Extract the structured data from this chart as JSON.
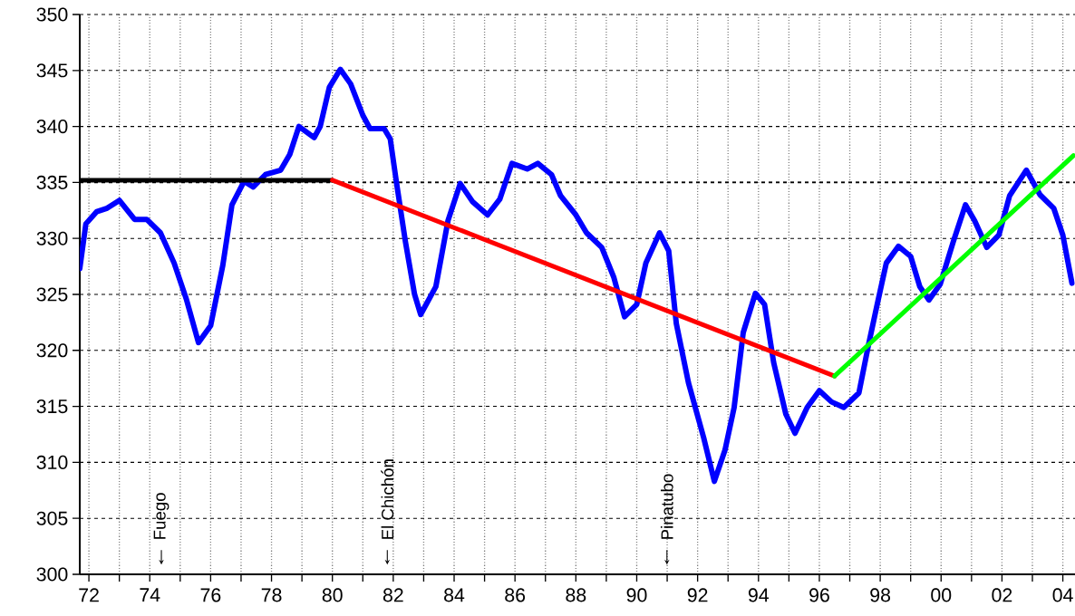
{
  "chart_data": {
    "type": "line",
    "xlim": [
      1971.7,
      2004.4
    ],
    "ylim": [
      300,
      350
    ],
    "xticks": [
      {
        "value": 1972,
        "label": "72"
      },
      {
        "value": 1973,
        "label": null
      },
      {
        "value": 1974,
        "label": "74"
      },
      {
        "value": 1975,
        "label": null
      },
      {
        "value": 1976,
        "label": "76"
      },
      {
        "value": 1977,
        "label": null
      },
      {
        "value": 1978,
        "label": "78"
      },
      {
        "value": 1979,
        "label": null
      },
      {
        "value": 1980,
        "label": "80"
      },
      {
        "value": 1981,
        "label": null
      },
      {
        "value": 1982,
        "label": "82"
      },
      {
        "value": 1983,
        "label": null
      },
      {
        "value": 1984,
        "label": "84"
      },
      {
        "value": 1985,
        "label": null
      },
      {
        "value": 1986,
        "label": "86"
      },
      {
        "value": 1987,
        "label": null
      },
      {
        "value": 1988,
        "label": "88"
      },
      {
        "value": 1989,
        "label": null
      },
      {
        "value": 1990,
        "label": "90"
      },
      {
        "value": 1991,
        "label": null
      },
      {
        "value": 1992,
        "label": "92"
      },
      {
        "value": 1993,
        "label": null
      },
      {
        "value": 1994,
        "label": "94"
      },
      {
        "value": 1995,
        "label": null
      },
      {
        "value": 1996,
        "label": "96"
      },
      {
        "value": 1997,
        "label": null
      },
      {
        "value": 1998,
        "label": "98"
      },
      {
        "value": 1999,
        "label": null
      },
      {
        "value": 2000,
        "label": "00"
      },
      {
        "value": 2001,
        "label": null
      },
      {
        "value": 2002,
        "label": "02"
      },
      {
        "value": 2003,
        "label": null
      },
      {
        "value": 2004,
        "label": "04"
      }
    ],
    "yticks": [
      300,
      305,
      310,
      315,
      320,
      325,
      330,
      335,
      340,
      345,
      350
    ],
    "grid": true,
    "ref_lines": [
      {
        "axis": "y",
        "value": 335,
        "color": "#000000",
        "line_style": "dashed"
      }
    ],
    "annotations": [
      "Fuego",
      "El Chichón",
      "Pinatubo"
    ],
    "series": [
      {
        "color": "#0000ff",
        "x": [
          1971.7,
          1971.9,
          1972.26,
          1972.6,
          1973.0,
          1973.5,
          1973.9,
          1974.35,
          1974.8,
          1975.2,
          1975.6,
          1976.0,
          1976.4,
          1976.7,
          1977.1,
          1977.4,
          1977.8,
          1978.3,
          1978.6,
          1978.9,
          1979.4,
          1979.6,
          1979.9,
          1980.26,
          1980.6,
          1981.0,
          1981.24,
          1981.7,
          1981.9,
          1982.1,
          1982.4,
          1982.7,
          1982.9,
          1983.4,
          1983.8,
          1984.2,
          1984.6,
          1985.1,
          1985.5,
          1985.9,
          1986.4,
          1986.75,
          1987.2,
          1987.5,
          1988.0,
          1988.35,
          1988.85,
          1989.25,
          1989.6,
          1990.0,
          1990.3,
          1990.75,
          1991.05,
          1991.3,
          1991.7,
          1992.2,
          1992.55,
          1992.9,
          1993.2,
          1993.5,
          1993.9,
          1994.2,
          1994.5,
          1994.9,
          1995.2,
          1995.6,
          1996.0,
          1996.4,
          1996.8,
          1997.3,
          1997.6,
          1997.9,
          1998.2,
          1998.6,
          1999.0,
          1999.3,
          1999.6,
          1999.97,
          2000.4,
          2000.8,
          2001.1,
          2001.5,
          2001.9,
          2002.25,
          2002.8,
          2003.25,
          2003.7,
          2004.0,
          2004.3
        ],
        "values": [
          327.3,
          331.3,
          332.4,
          332.7,
          333.4,
          331.7,
          331.7,
          330.5,
          327.8,
          324.6,
          320.7,
          322.2,
          327.6,
          333.0,
          335.1,
          334.6,
          335.7,
          336.1,
          337.5,
          340.0,
          339.0,
          340.0,
          343.5,
          345.1,
          343.8,
          341.0,
          339.8,
          339.8,
          338.9,
          335.1,
          329.7,
          325.0,
          323.2,
          325.7,
          331.6,
          334.9,
          333.3,
          332.1,
          333.5,
          336.7,
          336.2,
          336.7,
          335.7,
          333.8,
          332.1,
          330.5,
          329.2,
          326.5,
          323.0,
          324.1,
          327.8,
          330.5,
          328.9,
          322.4,
          317.1,
          312.2,
          308.3,
          311.1,
          314.9,
          321.6,
          325.1,
          324.1,
          318.9,
          314.3,
          312.6,
          314.9,
          316.4,
          315.4,
          314.9,
          316.2,
          320.3,
          324.1,
          327.8,
          329.3,
          328.4,
          325.7,
          324.5,
          325.9,
          329.7,
          333.0,
          331.6,
          329.2,
          330.3,
          333.8,
          336.1,
          333.9,
          332.7,
          330.3,
          326.0
        ]
      },
      {
        "color": "#000000",
        "x": [
          1971.7,
          1980.0
        ],
        "values": [
          335.2,
          335.2
        ]
      },
      {
        "color": "#ff0000",
        "x": [
          1980.0,
          1996.5
        ],
        "values": [
          335.2,
          317.7
        ]
      },
      {
        "color": "#00ff00",
        "x": [
          1996.5,
          2004.35
        ],
        "values": [
          317.7,
          337.4
        ]
      }
    ]
  }
}
